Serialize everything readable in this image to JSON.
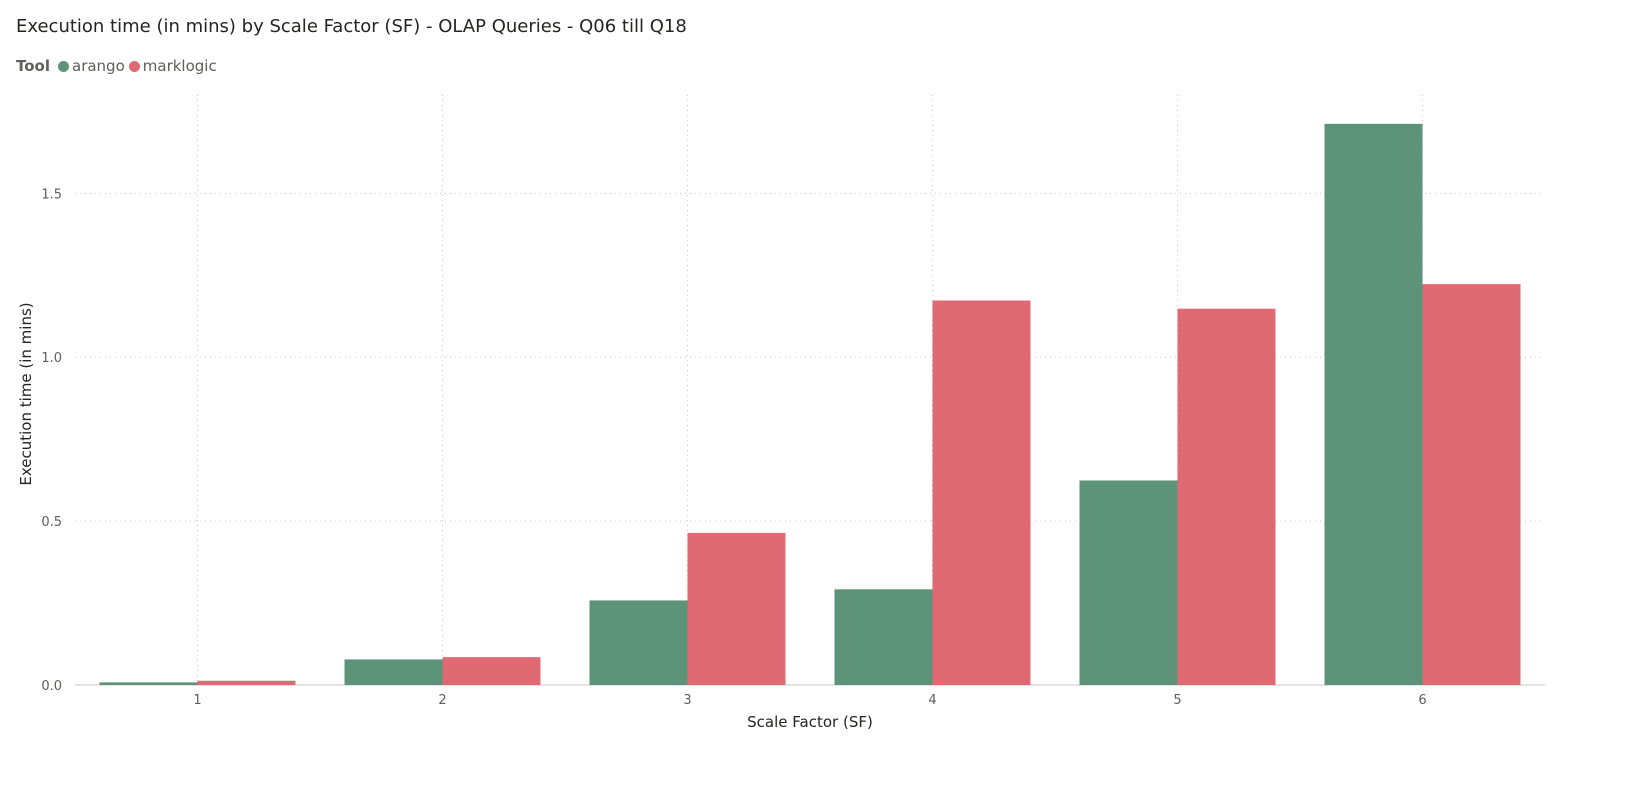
{
  "chart_data": {
    "type": "bar",
    "title": "Execution time (in mins) by Scale Factor (SF) - OLAP Queries - Q06 till Q18",
    "xlabel": "Scale Factor (SF)",
    "ylabel": "Execution time (in mins)",
    "legend_title": "Tool",
    "legend_position": "top-left",
    "grid": true,
    "categories": [
      "1",
      "2",
      "3",
      "4",
      "5",
      "6"
    ],
    "ylim": [
      0,
      1.8
    ],
    "yticks": [
      0.0,
      0.5,
      1.0,
      1.5
    ],
    "ytick_labels": [
      "0.0",
      "0.5",
      "1.0",
      "1.5"
    ],
    "series": [
      {
        "name": "arango",
        "color": "#5D9479",
        "values": [
          0.008,
          0.078,
          0.258,
          0.292,
          0.624,
          1.712
        ]
      },
      {
        "name": "marklogic",
        "color": "#E06A73",
        "values": [
          0.013,
          0.085,
          0.464,
          1.173,
          1.148,
          1.223
        ]
      }
    ]
  }
}
